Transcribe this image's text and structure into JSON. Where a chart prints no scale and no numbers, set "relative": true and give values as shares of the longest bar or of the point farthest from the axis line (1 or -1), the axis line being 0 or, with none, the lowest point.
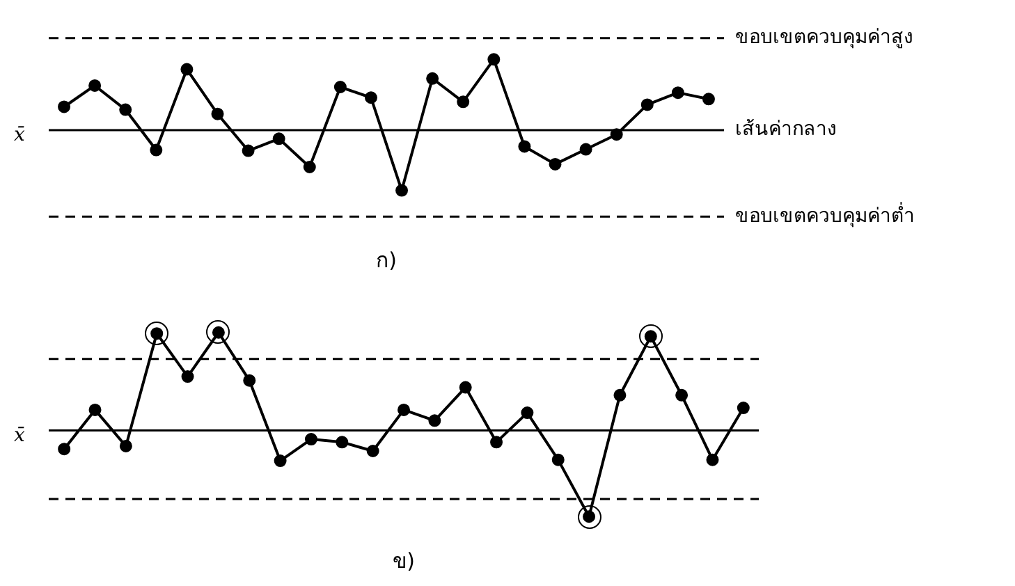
{
  "chart_data": [
    {
      "type": "line",
      "title": "ก)",
      "ylabel": "x̄",
      "relative": true,
      "marker": "circle",
      "categories": [
        null,
        null,
        null,
        null,
        null,
        null,
        null,
        null,
        null,
        null,
        null,
        null,
        null,
        null,
        null,
        null,
        null,
        null,
        null,
        null,
        null,
        null
      ],
      "series": [
        {
          "color": "#000000",
          "values": [
            0.33,
            0.63,
            0.29,
            -0.28,
            0.86,
            0.23,
            -0.29,
            -0.12,
            -0.52,
            0.61,
            0.46,
            -0.85,
            0.73,
            0.4,
            1,
            -0.23,
            -0.48,
            -0.27,
            -0.06,
            0.36,
            0.53,
            0.44
          ]
        }
      ],
      "ref_lines": [
        {
          "axis": "y",
          "value": 1.3,
          "label": "ขอบเขตควบคุมค่าสูง",
          "line_style": "dashed",
          "color": "#000000"
        },
        {
          "axis": "y",
          "value": 0,
          "label": "เส้นค่ากลาง",
          "line_style": "solid",
          "color": "#000000"
        },
        {
          "axis": "y",
          "value": -1.22,
          "label": "ขอบเขตควบคุมค่าต่ำ",
          "line_style": "dashed",
          "color": "#000000"
        }
      ]
    },
    {
      "type": "line",
      "title": "ข)",
      "ylabel": "x̄",
      "relative": true,
      "marker": "circle",
      "categories": [
        null,
        null,
        null,
        null,
        null,
        null,
        null,
        null,
        null,
        null,
        null,
        null,
        null,
        null,
        null,
        null,
        null,
        null,
        null,
        null,
        null,
        null,
        null
      ],
      "series": [
        {
          "color": "#000000",
          "values": [
            -0.19,
            0.21,
            -0.16,
            0.99,
            0.55,
            1,
            0.51,
            -0.31,
            -0.09,
            -0.12,
            -0.21,
            0.21,
            0.1,
            0.44,
            -0.12,
            0.18,
            -0.3,
            -0.88,
            0.36,
            0.96,
            0.36,
            -0.3,
            0.23
          ]
        }
      ],
      "ref_lines": [
        {
          "axis": "y",
          "value": 0.73,
          "line_style": "dashed",
          "color": "#000000"
        },
        {
          "axis": "y",
          "value": 0,
          "line_style": "solid",
          "color": "#000000"
        },
        {
          "axis": "y",
          "value": -0.7,
          "line_style": "dashed",
          "color": "#000000"
        }
      ]
    }
  ]
}
